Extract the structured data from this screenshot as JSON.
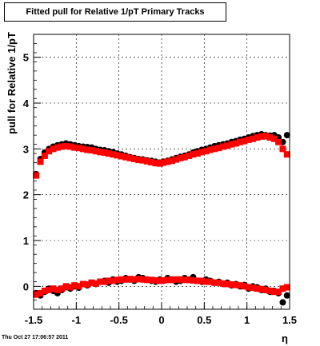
{
  "title": "Fitted pull for Relative 1/pT  Primary Tracks",
  "timestamp": "Thu Oct 27 17:06:57 2011",
  "chart_data": {
    "type": "scatter",
    "ylabel": "pull for Relative 1/pT",
    "xlabel": "η",
    "xlim": [
      -1.5,
      1.5
    ],
    "ylim": [
      -0.5,
      5.5
    ],
    "xticks": [
      -1.5,
      -1,
      -0.5,
      0,
      0.5,
      1,
      1.5
    ],
    "xtick_labels": [
      "-1.5",
      "-1",
      "-0.5",
      "0",
      "0.5",
      "1",
      "1.5"
    ],
    "yticks": [
      0,
      1,
      2,
      3,
      4,
      5
    ],
    "ytick_labels": [
      "0",
      "1",
      "2",
      "3",
      "4",
      "5"
    ],
    "grid": true,
    "colors": {
      "black_series": "#000000",
      "red_series": "#ff0000"
    },
    "series": [
      {
        "color": "#000000",
        "x": [
          -1.47,
          -1.42,
          -1.37,
          -1.32,
          -1.27,
          -1.22,
          -1.17,
          -1.12,
          -1.07,
          -1.02,
          -0.97,
          -0.92,
          -0.87,
          -0.82,
          -0.77,
          -0.72,
          -0.67,
          -0.62,
          -0.57,
          -0.52,
          -0.47,
          -0.42,
          -0.37,
          -0.32,
          -0.27,
          -0.22,
          -0.17,
          -0.12,
          -0.07,
          -0.02,
          0.02,
          0.07,
          0.12,
          0.17,
          0.22,
          0.27,
          0.32,
          0.37,
          0.42,
          0.47,
          0.52,
          0.57,
          0.62,
          0.67,
          0.72,
          0.77,
          0.82,
          0.87,
          0.92,
          0.97,
          1.02,
          1.07,
          1.12,
          1.17,
          1.22,
          1.27,
          1.32,
          1.37,
          1.42,
          1.47
        ],
        "y": [
          2.45,
          2.78,
          2.92,
          3.0,
          3.05,
          3.08,
          3.1,
          3.12,
          3.1,
          3.08,
          3.06,
          3.05,
          3.04,
          3.03,
          3.0,
          2.98,
          2.97,
          2.95,
          2.93,
          2.9,
          2.88,
          2.85,
          2.82,
          2.8,
          2.78,
          2.77,
          2.75,
          2.74,
          2.72,
          2.7,
          2.72,
          2.74,
          2.77,
          2.8,
          2.83,
          2.85,
          2.88,
          2.92,
          2.95,
          2.98,
          3.0,
          3.03,
          3.06,
          3.08,
          3.1,
          3.12,
          3.15,
          3.17,
          3.2,
          3.22,
          3.25,
          3.28,
          3.3,
          3.32,
          3.3,
          3.29,
          3.3,
          3.25,
          3.15,
          3.3
        ]
      },
      {
        "color": "#ff0000",
        "x": [
          -1.47,
          -1.42,
          -1.37,
          -1.32,
          -1.27,
          -1.22,
          -1.17,
          -1.12,
          -1.07,
          -1.02,
          -0.97,
          -0.92,
          -0.87,
          -0.82,
          -0.77,
          -0.72,
          -0.67,
          -0.62,
          -0.57,
          -0.52,
          -0.47,
          -0.42,
          -0.37,
          -0.32,
          -0.27,
          -0.22,
          -0.17,
          -0.12,
          -0.07,
          -0.02,
          0.02,
          0.07,
          0.12,
          0.17,
          0.22,
          0.27,
          0.32,
          0.37,
          0.42,
          0.47,
          0.52,
          0.57,
          0.62,
          0.67,
          0.72,
          0.77,
          0.82,
          0.87,
          0.92,
          0.97,
          1.02,
          1.07,
          1.12,
          1.17,
          1.22,
          1.27,
          1.32,
          1.37,
          1.42,
          1.47
        ],
        "y": [
          2.42,
          2.72,
          2.85,
          2.95,
          3.0,
          3.03,
          3.05,
          3.06,
          3.05,
          3.03,
          3.02,
          3.0,
          2.98,
          2.97,
          2.95,
          2.93,
          2.92,
          2.9,
          2.88,
          2.86,
          2.84,
          2.82,
          2.8,
          2.78,
          2.76,
          2.75,
          2.73,
          2.71,
          2.69,
          2.68,
          2.7,
          2.72,
          2.74,
          2.77,
          2.8,
          2.82,
          2.85,
          2.88,
          2.9,
          2.93,
          2.95,
          2.98,
          3.0,
          3.02,
          3.05,
          3.07,
          3.1,
          3.12,
          3.15,
          3.17,
          3.2,
          3.22,
          3.25,
          3.27,
          3.28,
          3.25,
          3.22,
          3.15,
          3.0,
          2.88
        ]
      },
      {
        "color": "#000000",
        "x": [
          -1.47,
          -1.42,
          -1.37,
          -1.32,
          -1.27,
          -1.22,
          -1.17,
          -1.12,
          -1.07,
          -1.02,
          -0.97,
          -0.92,
          -0.87,
          -0.82,
          -0.77,
          -0.72,
          -0.67,
          -0.62,
          -0.57,
          -0.52,
          -0.47,
          -0.42,
          -0.37,
          -0.32,
          -0.27,
          -0.22,
          -0.17,
          -0.12,
          -0.07,
          -0.02,
          0.02,
          0.07,
          0.12,
          0.17,
          0.22,
          0.27,
          0.32,
          0.37,
          0.42,
          0.47,
          0.52,
          0.57,
          0.62,
          0.67,
          0.72,
          0.77,
          0.82,
          0.87,
          0.92,
          0.97,
          1.02,
          1.07,
          1.12,
          1.17,
          1.22,
          1.27,
          1.32,
          1.37,
          1.42,
          1.47
        ],
        "y": [
          -0.15,
          -0.2,
          -0.12,
          -0.05,
          -0.1,
          -0.15,
          -0.08,
          -0.02,
          -0.05,
          0.0,
          -0.03,
          0.05,
          0.02,
          0.08,
          0.05,
          0.1,
          0.12,
          0.08,
          0.15,
          0.1,
          0.12,
          0.18,
          0.15,
          0.12,
          0.2,
          0.18,
          0.15,
          0.12,
          0.1,
          0.15,
          0.12,
          0.18,
          0.15,
          0.1,
          0.12,
          0.18,
          0.15,
          0.2,
          0.12,
          0.1,
          0.15,
          0.12,
          0.08,
          0.1,
          0.05,
          0.08,
          0.02,
          0.05,
          0.0,
          0.03,
          -0.05,
          0.0,
          -0.02,
          -0.08,
          -0.05,
          -0.12,
          -0.1,
          -0.15,
          -0.35,
          -0.2
        ]
      },
      {
        "color": "#ff0000",
        "x": [
          -1.47,
          -1.42,
          -1.37,
          -1.32,
          -1.27,
          -1.22,
          -1.17,
          -1.12,
          -1.07,
          -1.02,
          -0.97,
          -0.92,
          -0.87,
          -0.82,
          -0.77,
          -0.72,
          -0.67,
          -0.62,
          -0.57,
          -0.52,
          -0.47,
          -0.42,
          -0.37,
          -0.32,
          -0.27,
          -0.22,
          -0.17,
          -0.12,
          -0.07,
          -0.02,
          0.02,
          0.07,
          0.12,
          0.17,
          0.22,
          0.27,
          0.32,
          0.37,
          0.42,
          0.47,
          0.52,
          0.57,
          0.62,
          0.67,
          0.72,
          0.77,
          0.82,
          0.87,
          0.92,
          0.97,
          1.02,
          1.07,
          1.12,
          1.17,
          1.22,
          1.27,
          1.32,
          1.37,
          1.42,
          1.47
        ],
        "y": [
          -0.18,
          -0.15,
          -0.1,
          -0.08,
          -0.05,
          -0.08,
          -0.05,
          0.0,
          -0.02,
          0.02,
          0.0,
          0.05,
          0.04,
          0.08,
          0.06,
          0.1,
          0.1,
          0.12,
          0.12,
          0.14,
          0.15,
          0.15,
          0.16,
          0.15,
          0.16,
          0.15,
          0.14,
          0.14,
          0.13,
          0.12,
          0.13,
          0.14,
          0.14,
          0.15,
          0.15,
          0.14,
          0.14,
          0.13,
          0.12,
          0.12,
          0.1,
          0.1,
          0.08,
          0.08,
          0.06,
          0.05,
          0.04,
          0.03,
          0.02,
          0.0,
          -0.02,
          -0.03,
          -0.05,
          -0.06,
          -0.08,
          -0.1,
          -0.12,
          -0.12,
          -0.05,
          -0.02
        ]
      }
    ]
  }
}
